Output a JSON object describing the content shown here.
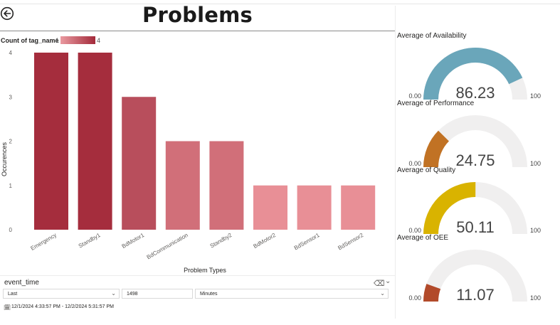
{
  "page": {
    "title": "Problems"
  },
  "legend": {
    "label": "Count of tag_name",
    "min": "1",
    "max": "4"
  },
  "chart_data": {
    "type": "bar",
    "categories": [
      "Emergency",
      "Standby1",
      "BdMotor1",
      "BdCommunication",
      "Standby2",
      "BdMotor2",
      "BdSensor1",
      "BdSensor2"
    ],
    "values": [
      4,
      4,
      3,
      2,
      2,
      1,
      1,
      1
    ],
    "ylim": [
      0,
      4
    ],
    "yticks": [
      "0",
      "1",
      "2",
      "3",
      "4"
    ],
    "xlabel": "Problem Types",
    "ylabel": "Occurences",
    "colors": [
      "#a52d3d",
      "#a52d3d",
      "#b84e5c",
      "#d16f79",
      "#d16f79",
      "#e88f96",
      "#e88f96",
      "#e88f96"
    ]
  },
  "slicer": {
    "title": "event_time",
    "period": "Last",
    "amount": "1498",
    "unit": "Minutes",
    "range": "12/1/2024 4:33:57 PM - 12/2/2024 5:31:57 PM"
  },
  "gauges": [
    {
      "title": "Average of Availability",
      "value": 86.23,
      "value_text": "86.23",
      "min": "0.00",
      "max": "100",
      "color": "#6aa6ba"
    },
    {
      "title": "Average of Performance",
      "value": 24.75,
      "value_text": "24.75",
      "min": "0.00",
      "max": "100",
      "color": "#c17224"
    },
    {
      "title": "Average of Quality",
      "value": 50.11,
      "value_text": "50.11",
      "min": "0.00",
      "max": "100",
      "color": "#d9b300"
    },
    {
      "title": "Average of OEE",
      "value": 11.07,
      "value_text": "11.07",
      "min": "0.00",
      "max": "100",
      "color": "#b24a2a"
    }
  ]
}
